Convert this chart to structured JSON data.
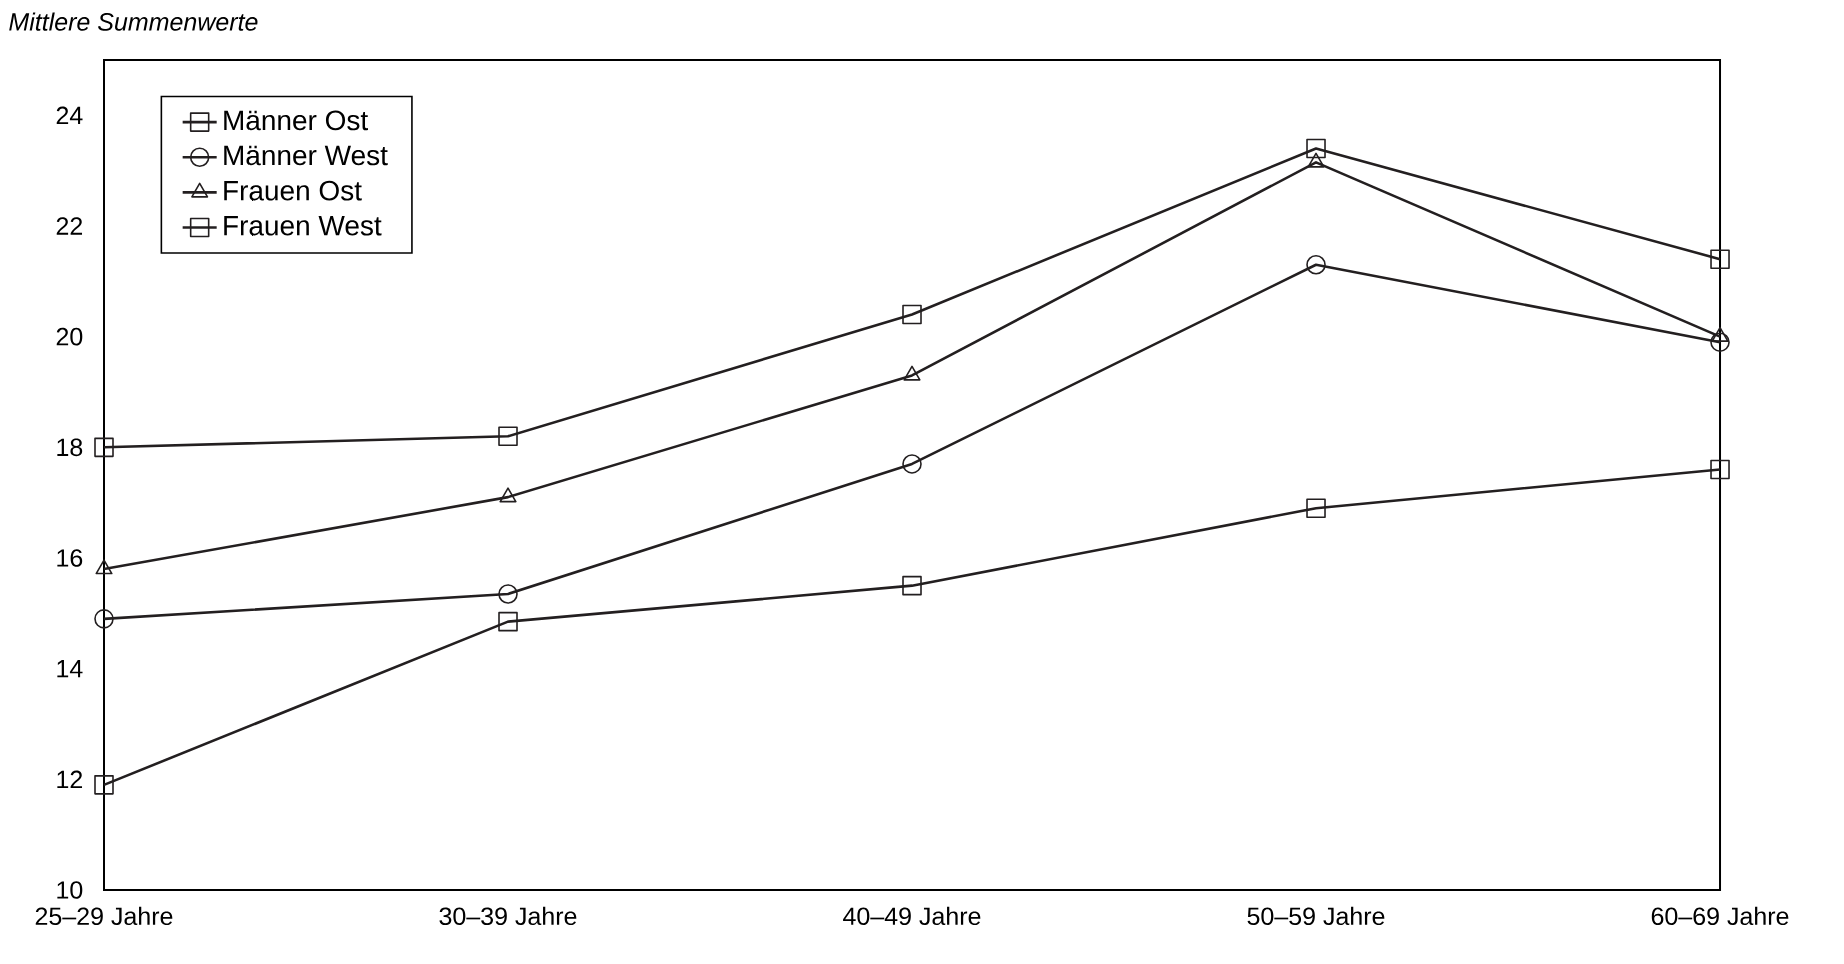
{
  "chart_data": {
    "type": "line",
    "ylabel": "Mittlere Summenwerte",
    "categories": [
      "25–29 Jahre",
      "30–39 Jahre",
      "40–49 Jahre",
      "50–59 Jahre",
      "60–69 Jahre"
    ],
    "series": [
      {
        "name": "Männer Ost",
        "color": "#231f20",
        "marker": "square",
        "values": [
          11.9,
          14.85,
          15.5,
          16.9,
          17.6
        ]
      },
      {
        "name": "Männer West",
        "color": "#231f20",
        "marker": "circle",
        "values": [
          14.9,
          15.35,
          17.7,
          21.3,
          19.9
        ]
      },
      {
        "name": "Frauen Ost",
        "color": "#231f20",
        "marker": "triangle",
        "values": [
          15.8,
          17.1,
          19.3,
          23.15,
          20.0
        ]
      },
      {
        "name": "Frauen West",
        "color": "#231f20",
        "marker": "square",
        "values": [
          18.0,
          18.2,
          20.4,
          23.4,
          21.4
        ]
      }
    ],
    "ylim": [
      10,
      25
    ],
    "yticks": [
      10,
      12,
      14,
      16,
      18,
      20,
      22,
      24
    ],
    "grid": false,
    "legend": "top left",
    "line_style": "solid"
  }
}
